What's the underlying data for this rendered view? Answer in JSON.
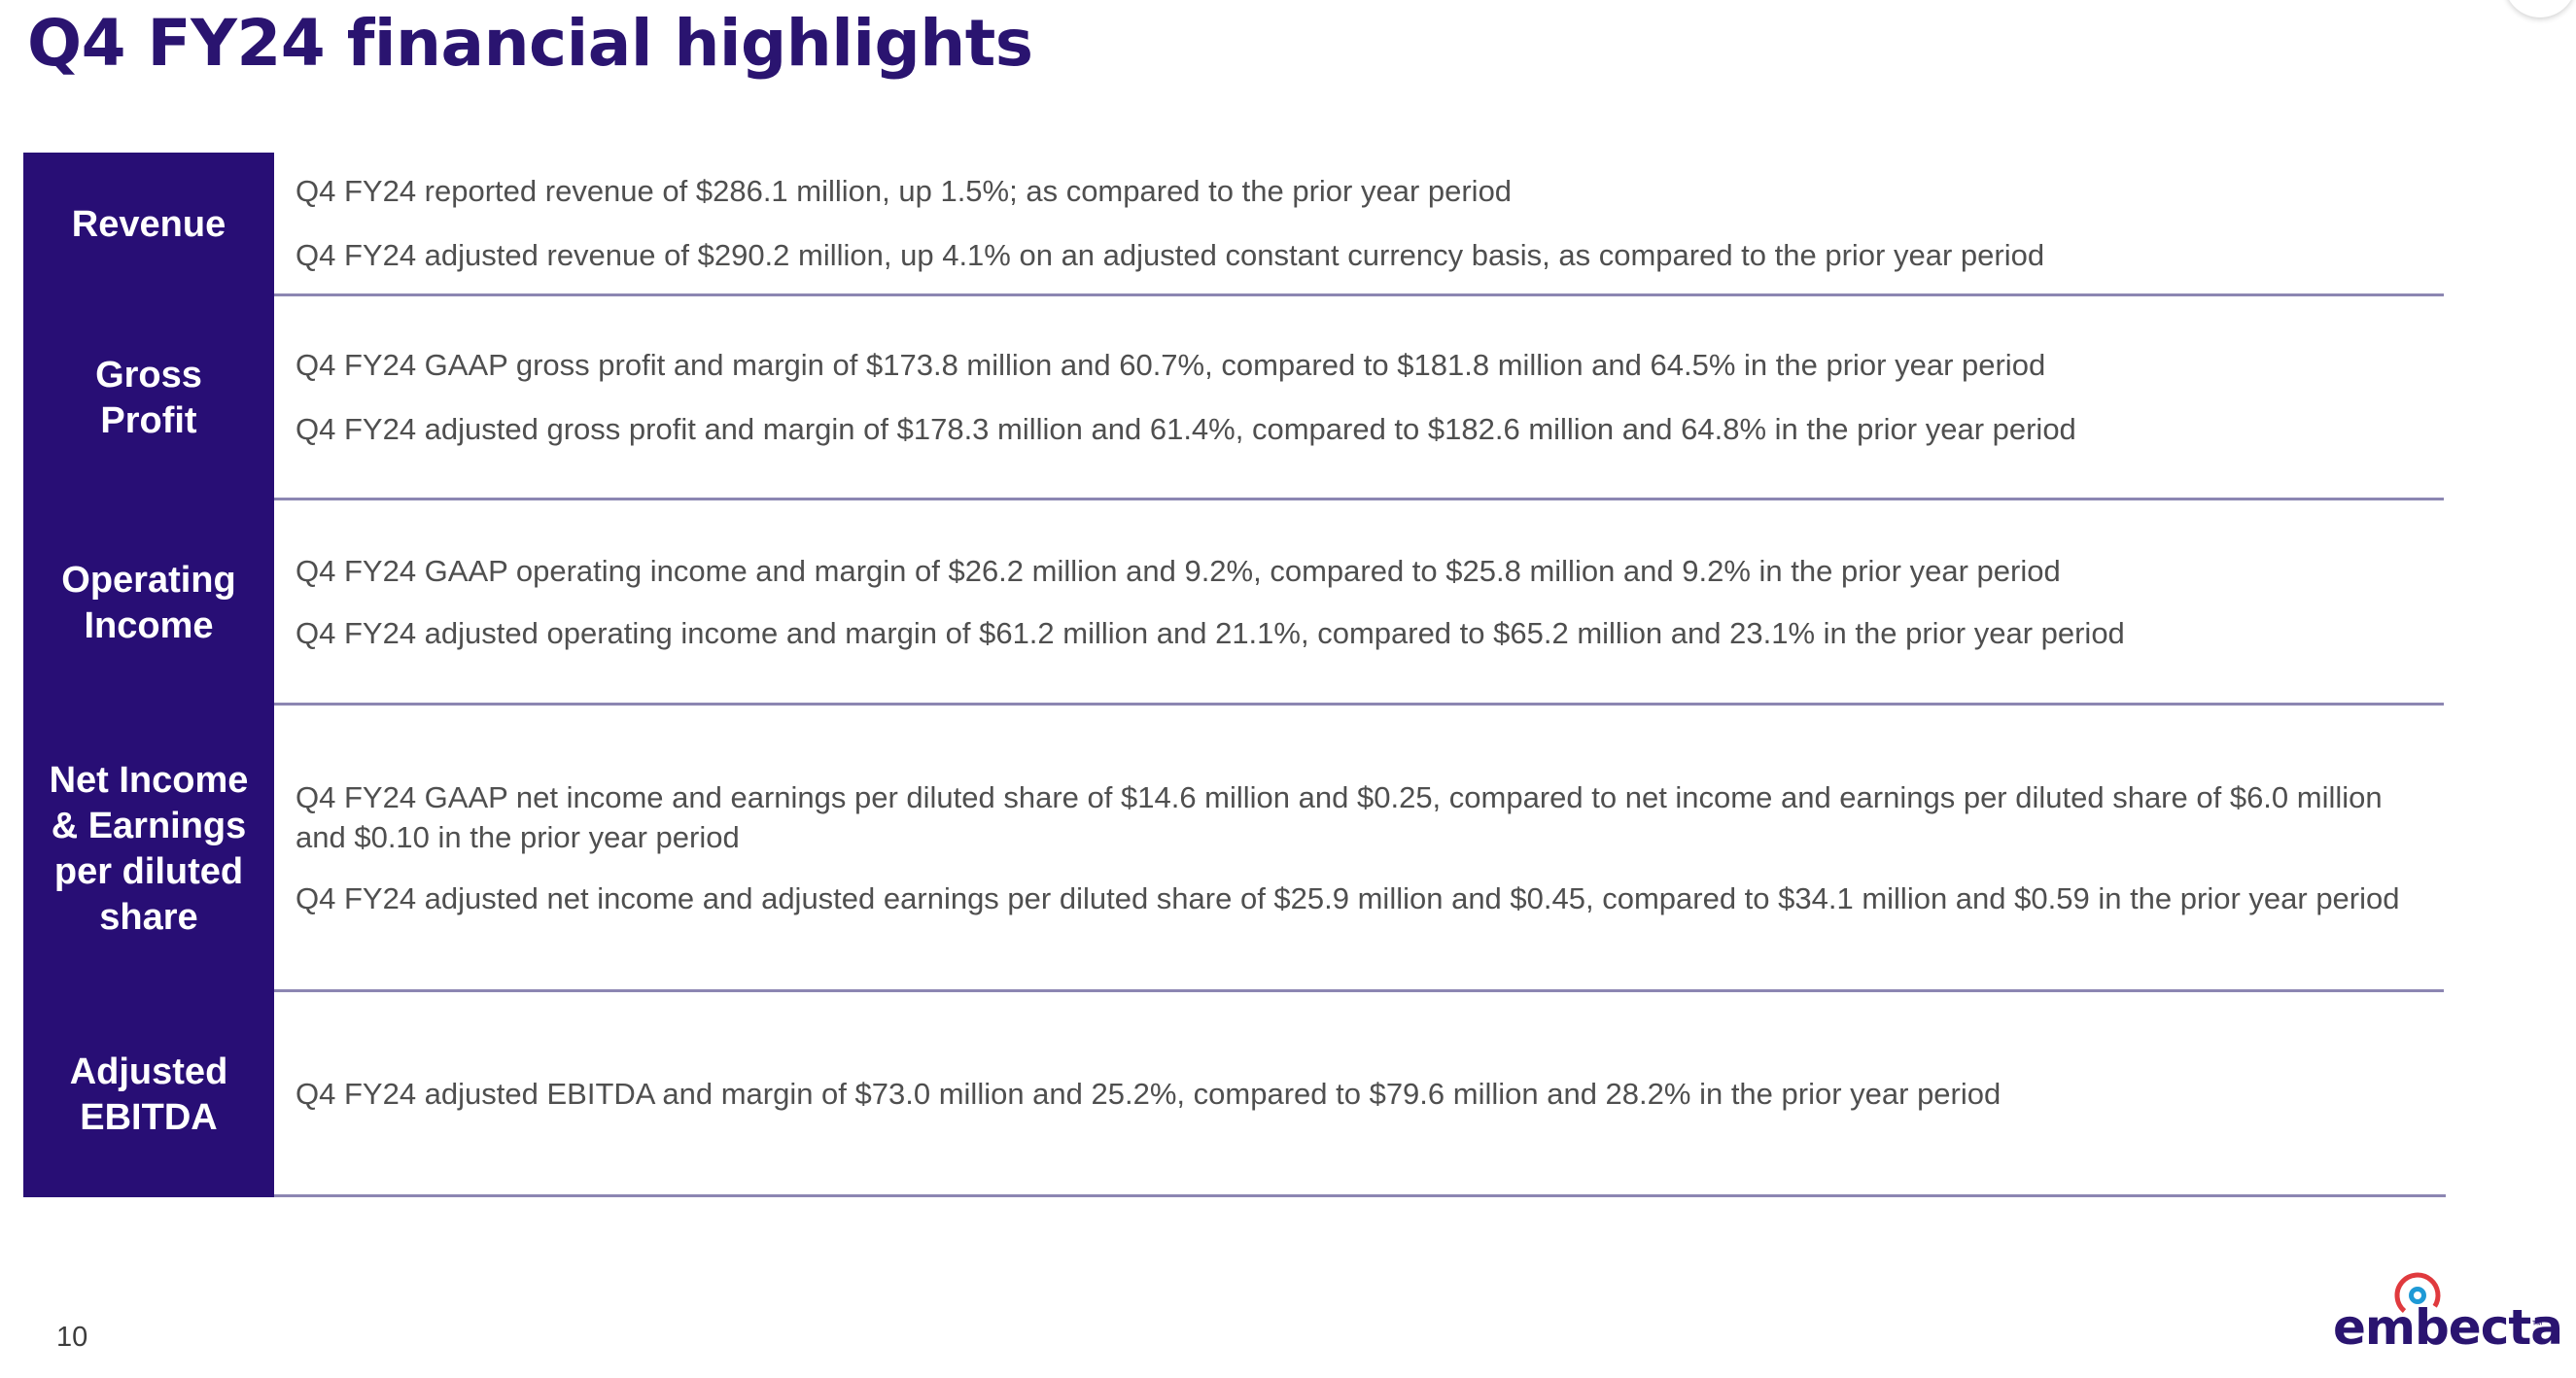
{
  "slide": {
    "title": "Q4 FY24 financial highlights",
    "page_number": "10"
  },
  "highlights": [
    {
      "label": "Revenue",
      "label_lines": [
        "Revenue"
      ],
      "bullets": [
        "Q4 FY24 reported revenue of $286.1 million, up 1.5%; as compared to the prior year period",
        "Q4 FY24 adjusted revenue of $290.2 million, up 4.1% on an adjusted constant currency basis, as compared to the prior year period"
      ]
    },
    {
      "label": "Gross Profit",
      "label_lines": [
        "Gross",
        "Profit"
      ],
      "bullets": [
        "Q4 FY24 GAAP gross profit and margin of $173.8 million and 60.7%, compared to $181.8 million and 64.5% in the prior year period",
        "Q4 FY24 adjusted gross profit and margin of $178.3 million and 61.4%, compared to $182.6 million and 64.8% in the prior year period"
      ]
    },
    {
      "label": "Operating Income",
      "label_lines": [
        "Operating",
        "Income"
      ],
      "bullets": [
        "Q4 FY24 GAAP operating income and margin of $26.2 million and 9.2%, compared to $25.8 million and 9.2% in the prior year period",
        "Q4 FY24 adjusted operating income and margin of $61.2 million and 21.1%, compared to $65.2 million and 23.1% in the prior year period"
      ]
    },
    {
      "label": "Net Income & Earnings per diluted share",
      "label_lines": [
        "Net Income",
        "& Earnings",
        "per diluted",
        "share"
      ],
      "bullets": [
        "Q4 FY24 GAAP net income and earnings per diluted share of $14.6 million and $0.25, compared to net income and earnings per diluted share of $6.0 million and $0.10 in the prior year period",
        "Q4 FY24 adjusted net income and adjusted earnings per diluted share of $25.9 million and $0.45, compared to $34.1 million and $0.59 in the prior year period"
      ]
    },
    {
      "label": "Adjusted EBITDA",
      "label_lines": [
        "Adjusted",
        "EBITDA"
      ],
      "bullets": [
        "Q4 FY24 adjusted EBITDA and margin of $73.0 million and 25.2%, compared to $79.6 million and 28.2% in the prior year period"
      ]
    }
  ],
  "brand": {
    "wordmark": "embecta",
    "icon": "embecta-logo-icon"
  },
  "colors": {
    "brand_purple": "#280e75",
    "title_purple": "#2a1470",
    "divider": "#8c86b2",
    "body_text": "#4f4f4f",
    "logo_red": "#e03a3e",
    "logo_blue": "#1f9ad6"
  }
}
